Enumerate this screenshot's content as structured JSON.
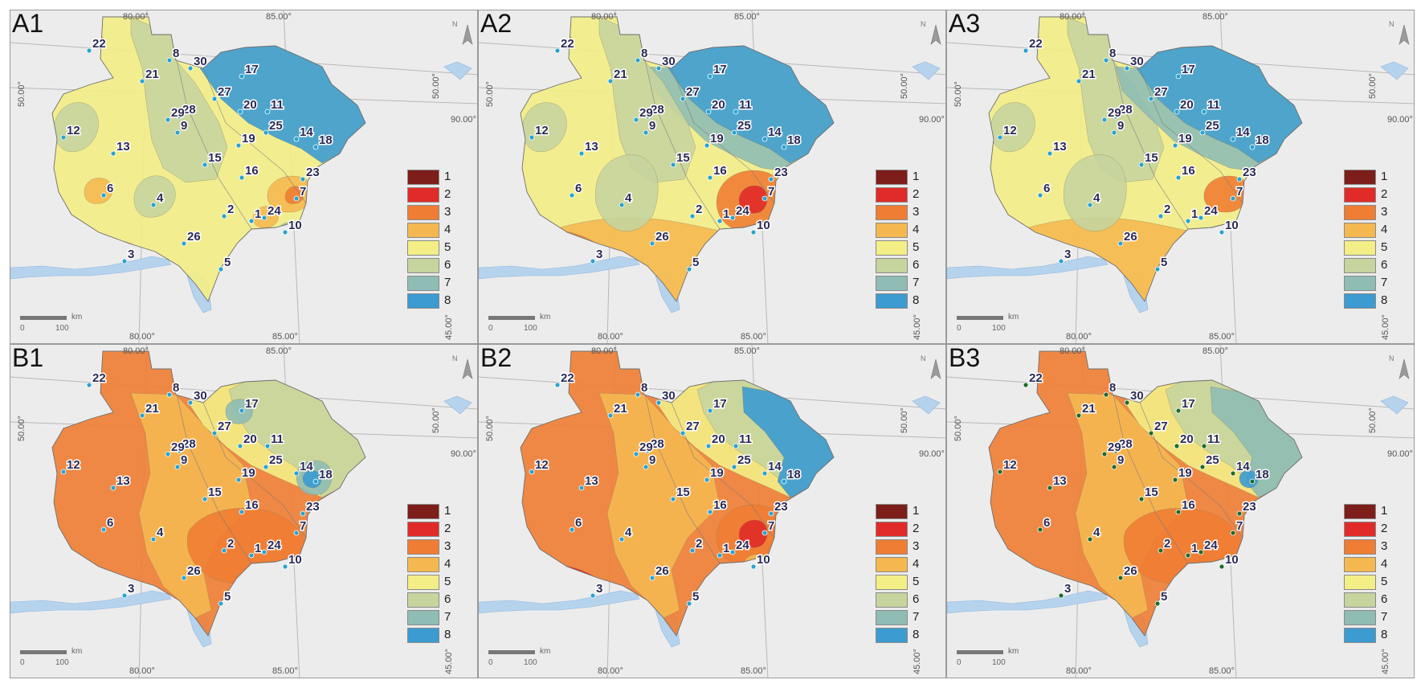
{
  "legend": {
    "classes": [
      "1",
      "2",
      "3",
      "4",
      "5",
      "6",
      "7",
      "8"
    ],
    "colors": [
      "#7d1e1a",
      "#e02b28",
      "#ef7d33",
      "#f5b851",
      "#f3ee86",
      "#c6d49e",
      "#8fbcb4",
      "#3c9bd1"
    ]
  },
  "coords": {
    "top_left": "80.00°",
    "top_right": "85.00°",
    "bottom_left": "80.00°",
    "bottom_right": "85.00°",
    "left_lat": "50.00°",
    "right_lat_top": "50.00°",
    "right_lon": "90.00°",
    "right_bottom": "45.00°"
  },
  "scalebar": {
    "unit": "km",
    "zero": "0",
    "max": "100"
  },
  "north": "N",
  "background": {
    "land": "#ececec",
    "water": "#b6d3ee"
  },
  "stations": [
    {
      "id": "1"
    },
    {
      "id": "2"
    },
    {
      "id": "3"
    },
    {
      "id": "4"
    },
    {
      "id": "5"
    },
    {
      "id": "6"
    },
    {
      "id": "7"
    },
    {
      "id": "8"
    },
    {
      "id": "9"
    },
    {
      "id": "10"
    },
    {
      "id": "11"
    },
    {
      "id": "12"
    },
    {
      "id": "13"
    },
    {
      "id": "14"
    },
    {
      "id": "15"
    },
    {
      "id": "16"
    },
    {
      "id": "17"
    },
    {
      "id": "18"
    },
    {
      "id": "19"
    },
    {
      "id": "20"
    },
    {
      "id": "21"
    },
    {
      "id": "22"
    },
    {
      "id": "23"
    },
    {
      "id": "24"
    },
    {
      "id": "25"
    },
    {
      "id": "26"
    },
    {
      "id": "27"
    },
    {
      "id": "28"
    },
    {
      "id": "29"
    },
    {
      "id": "30"
    }
  ],
  "panels": [
    {
      "label": "A1",
      "zones": [
        {
          "c": 5,
          "region": "base"
        },
        {
          "c": 6,
          "region": "nw-band"
        },
        {
          "c": 8,
          "region": "ne-block"
        },
        {
          "c": 6,
          "region": "west-blob"
        },
        {
          "c": 6,
          "region": "center-blob"
        },
        {
          "c": 4,
          "region": "s-blob"
        },
        {
          "c": 4,
          "region": "six-blob"
        },
        {
          "c": 4,
          "region": "seven-blob"
        },
        {
          "c": 3,
          "region": "three-dot"
        },
        {
          "c": 3,
          "region": "seven-dot"
        },
        {
          "c": 4,
          "region": "twentyfour-blob"
        },
        {
          "c": 7,
          "region": "ten-dot"
        },
        {
          "c": 4,
          "region": "twentytwo-dot"
        }
      ]
    },
    {
      "label": "A2",
      "zones": [
        {
          "c": 5,
          "region": "base"
        },
        {
          "c": 4,
          "region": "south-band"
        },
        {
          "c": 3,
          "region": "sw-strip"
        },
        {
          "c": 7,
          "region": "ne-transition"
        },
        {
          "c": 8,
          "region": "ne-block"
        },
        {
          "c": 6,
          "region": "west-blob"
        },
        {
          "c": 6,
          "region": "nw-band"
        },
        {
          "c": 6,
          "region": "four-blob"
        },
        {
          "c": 3,
          "region": "e-ring"
        },
        {
          "c": 2,
          "region": "e-core"
        },
        {
          "c": 7,
          "region": "se-band"
        },
        {
          "c": 4,
          "region": "twentytwo-dot"
        }
      ]
    },
    {
      "label": "A3",
      "zones": [
        {
          "c": 5,
          "region": "base"
        },
        {
          "c": 4,
          "region": "south-band"
        },
        {
          "c": 6,
          "region": "nw-band"
        },
        {
          "c": 7,
          "region": "ne-transition"
        },
        {
          "c": 8,
          "region": "ne-block"
        },
        {
          "c": 6,
          "region": "west-blob"
        },
        {
          "c": 6,
          "region": "four-blob"
        },
        {
          "c": 3,
          "region": "seven-blob"
        },
        {
          "c": 6,
          "region": "se-band"
        },
        {
          "c": 4,
          "region": "twentytwo-dot"
        }
      ]
    },
    {
      "label": "B1",
      "zones": [
        {
          "c": 3,
          "region": "base"
        },
        {
          "c": 4,
          "region": "center-band"
        },
        {
          "c": 5,
          "region": "ne-inner"
        },
        {
          "c": 6,
          "region": "ne-outer"
        },
        {
          "c": 7,
          "region": "seventeen-dot"
        },
        {
          "c": 7,
          "region": "eighteen-blob"
        },
        {
          "c": 8,
          "region": "eighteen-dot"
        },
        {
          "c": 2,
          "region": "three-dot"
        },
        {
          "c": 3,
          "region": "se-blob"
        }
      ]
    },
    {
      "label": "B2",
      "zones": [
        {
          "c": 3,
          "region": "base"
        },
        {
          "c": 4,
          "region": "center-band"
        },
        {
          "c": 5,
          "region": "ne-inner"
        },
        {
          "c": 6,
          "region": "ne-outer"
        },
        {
          "c": 8,
          "region": "ne-block-b"
        },
        {
          "c": 3,
          "region": "e-ring"
        },
        {
          "c": 2,
          "region": "e-core"
        },
        {
          "c": 2,
          "region": "sw-strip"
        },
        {
          "c": 4,
          "region": "ten-blob"
        }
      ]
    },
    {
      "label": "B3",
      "zones": [
        {
          "c": 3,
          "region": "base"
        },
        {
          "c": 4,
          "region": "center-band"
        },
        {
          "c": 5,
          "region": "ne-inner"
        },
        {
          "c": 6,
          "region": "ne-outer"
        },
        {
          "c": 7,
          "region": "ne-block-b"
        },
        {
          "c": 8,
          "region": "eighteen-dot"
        },
        {
          "c": 3,
          "region": "se-blob"
        }
      ]
    }
  ]
}
